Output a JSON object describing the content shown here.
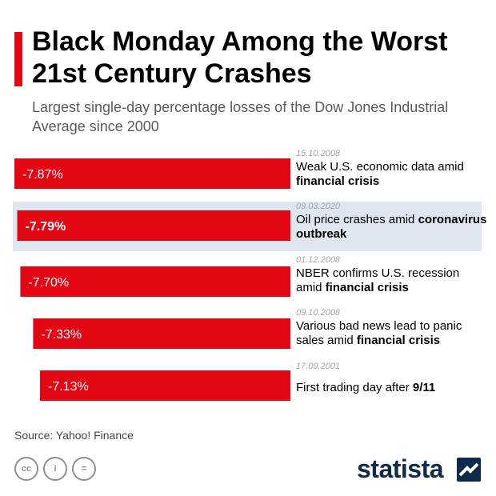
{
  "header": {
    "title": "Black Monday Among the Worst 21st Century Crashes",
    "subtitle": "Largest single-day percentage losses of the Dow Jones Industrial Average since 2000"
  },
  "colors": {
    "bar": "#e30613",
    "highlight": "#dfe6f0",
    "accent": "#e30613",
    "brand": "#0f2a4a"
  },
  "chart_data": {
    "type": "bar",
    "orientation": "horizontal",
    "categories": [
      "15.10.2008",
      "09.03.2020",
      "01.12.2008",
      "09.10.2008",
      "17.09.2001"
    ],
    "values": [
      -7.87,
      -7.79,
      -7.7,
      -7.33,
      -7.13
    ],
    "labels": [
      "-7.87%",
      "-7.79%",
      "-7.70%",
      "-7.33%",
      "-7.13%"
    ],
    "highlighted_index": 1
  },
  "events": [
    {
      "date": "15.10.2008",
      "text": "Weak U.S. economic data amid ",
      "bold": "financial crisis"
    },
    {
      "date": "09.03.2020",
      "text": "Oil price crashes amid ",
      "bold": "coronavirus outbreak"
    },
    {
      "date": "01.12.2008",
      "text": "NBER confirms U.S. recession amid ",
      "bold": "financial crisis"
    },
    {
      "date": "09.10.2008",
      "text": "Various bad news lead to panic sales amid ",
      "bold": "financial crisis"
    },
    {
      "date": "17.09.2001",
      "text": "First trading day after ",
      "bold": "9/11"
    }
  ],
  "footer": {
    "source": "Source: Yahoo! Finance",
    "license_icons": [
      "cc-icon",
      "attribution-icon",
      "no-derivatives-icon"
    ],
    "license_glyphs": [
      "cc",
      "i",
      "="
    ],
    "brand": "statista"
  }
}
